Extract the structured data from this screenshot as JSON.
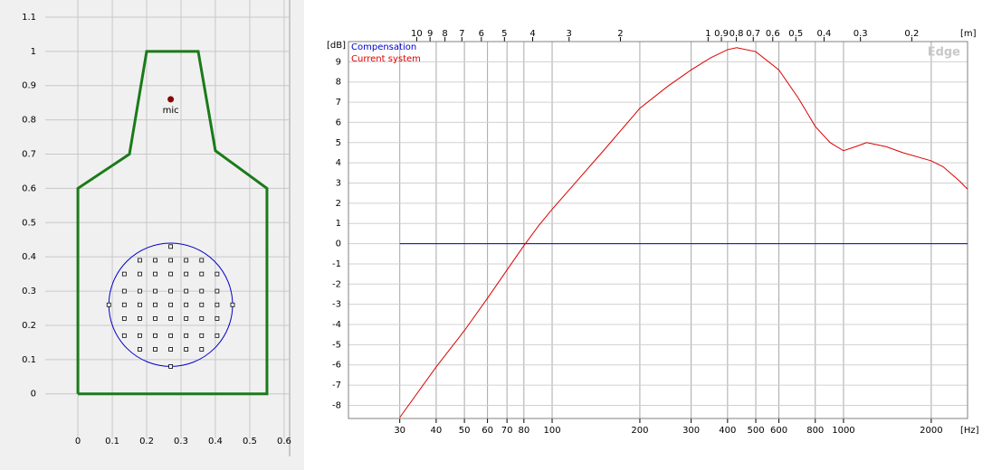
{
  "chart_data": [
    {
      "type": "scatter",
      "xlim": [
        -0.095,
        0.616
      ],
      "ylim": [
        -0.13,
        1.15
      ],
      "xticks": [
        0,
        0.1,
        0.2,
        0.3,
        0.4,
        0.5,
        0.6
      ],
      "yticks": [
        0,
        0.1,
        0.2,
        0.3,
        0.4,
        0.5,
        0.6,
        0.7,
        0.8,
        0.9,
        1,
        1.1
      ],
      "grid": true,
      "outline": {
        "color": "#1a7a1a",
        "x": [
          0,
          0,
          0.15,
          0.2,
          0.35,
          0.4,
          0.55,
          0.55,
          0
        ],
        "y": [
          0,
          0.6,
          0.7,
          1,
          1,
          0.71,
          0.6,
          0,
          0
        ]
      },
      "circle": {
        "color": "#0000cc",
        "cx": 0.27,
        "cy": 0.26,
        "r": 0.18
      },
      "points": {
        "x": [
          0.18,
          0.225,
          0.27,
          0.315,
          0.36,
          0.135,
          0.18,
          0.225,
          0.27,
          0.315,
          0.36,
          0.405,
          0.135,
          0.18,
          0.225,
          0.27,
          0.315,
          0.36,
          0.405,
          0.09,
          0.135,
          0.18,
          0.225,
          0.27,
          0.315,
          0.36,
          0.405,
          0.45,
          0.135,
          0.18,
          0.225,
          0.27,
          0.315,
          0.36,
          0.405,
          0.135,
          0.18,
          0.225,
          0.27,
          0.315,
          0.36,
          0.405,
          0.18,
          0.225,
          0.27,
          0.315,
          0.36,
          0.27,
          0.27
        ],
        "y": [
          0.39,
          0.39,
          0.39,
          0.39,
          0.39,
          0.35,
          0.35,
          0.35,
          0.35,
          0.35,
          0.35,
          0.35,
          0.3,
          0.3,
          0.3,
          0.3,
          0.3,
          0.3,
          0.3,
          0.26,
          0.26,
          0.26,
          0.26,
          0.26,
          0.26,
          0.26,
          0.26,
          0.26,
          0.22,
          0.22,
          0.22,
          0.22,
          0.22,
          0.22,
          0.22,
          0.17,
          0.17,
          0.17,
          0.17,
          0.17,
          0.17,
          0.17,
          0.13,
          0.13,
          0.13,
          0.13,
          0.13,
          0.43,
          0.08
        ]
      },
      "mic": {
        "label": "mic",
        "color": "#8b0000",
        "x": 0.27,
        "y": 0.86
      }
    },
    {
      "type": "line",
      "log_x": true,
      "grid": true,
      "watermark": "Edge",
      "y_unit": "[dB]",
      "x_unit": "[Hz]",
      "x2_unit": "[m]",
      "xlim": [
        20,
        2665
      ],
      "ylim": [
        -8.65,
        10
      ],
      "xticks": [
        30,
        40,
        50,
        60,
        70,
        80,
        100,
        200,
        300,
        400,
        500,
        600,
        800,
        1000,
        2000
      ],
      "yticks": [
        -8,
        -7,
        -6,
        -5,
        -4,
        -3,
        -2,
        -1,
        0,
        1,
        2,
        3,
        4,
        5,
        6,
        7,
        8,
        9
      ],
      "x2lim": [
        17.15,
        0.1287
      ],
      "x2ticks": [
        10,
        9,
        8,
        7,
        6,
        5,
        4,
        3,
        2,
        1,
        0.9,
        0.8,
        0.7,
        0.6,
        0.5,
        0.4,
        0.3,
        0.2
      ],
      "x": [
        30,
        40,
        50,
        60,
        70,
        80,
        90,
        100,
        150,
        200,
        250,
        300,
        350,
        400,
        430,
        500,
        600,
        700,
        800,
        900,
        1000,
        1100,
        1200,
        1400,
        1600,
        2000,
        2200,
        2500,
        2665
      ],
      "series": [
        {
          "name": "Compensation",
          "color": "#0000cc",
          "values": [
            0,
            0,
            0,
            0,
            0,
            0,
            0,
            0,
            0,
            0,
            0,
            0,
            0,
            0,
            0,
            0,
            0,
            0,
            0,
            0,
            0,
            0,
            0,
            0,
            0,
            0,
            0,
            0,
            0
          ]
        },
        {
          "name": "Current system",
          "color": "#dd0000",
          "values": [
            -8.6,
            -6.1,
            -4.3,
            -2.7,
            -1.3,
            -0.1,
            0.9,
            1.7,
            4.6,
            6.7,
            7.8,
            8.6,
            9.2,
            9.6,
            9.7,
            9.5,
            8.6,
            7.2,
            5.8,
            5.0,
            4.6,
            4.8,
            5.0,
            4.8,
            4.5,
            4.1,
            3.8,
            3.1,
            2.7
          ]
        }
      ]
    }
  ]
}
